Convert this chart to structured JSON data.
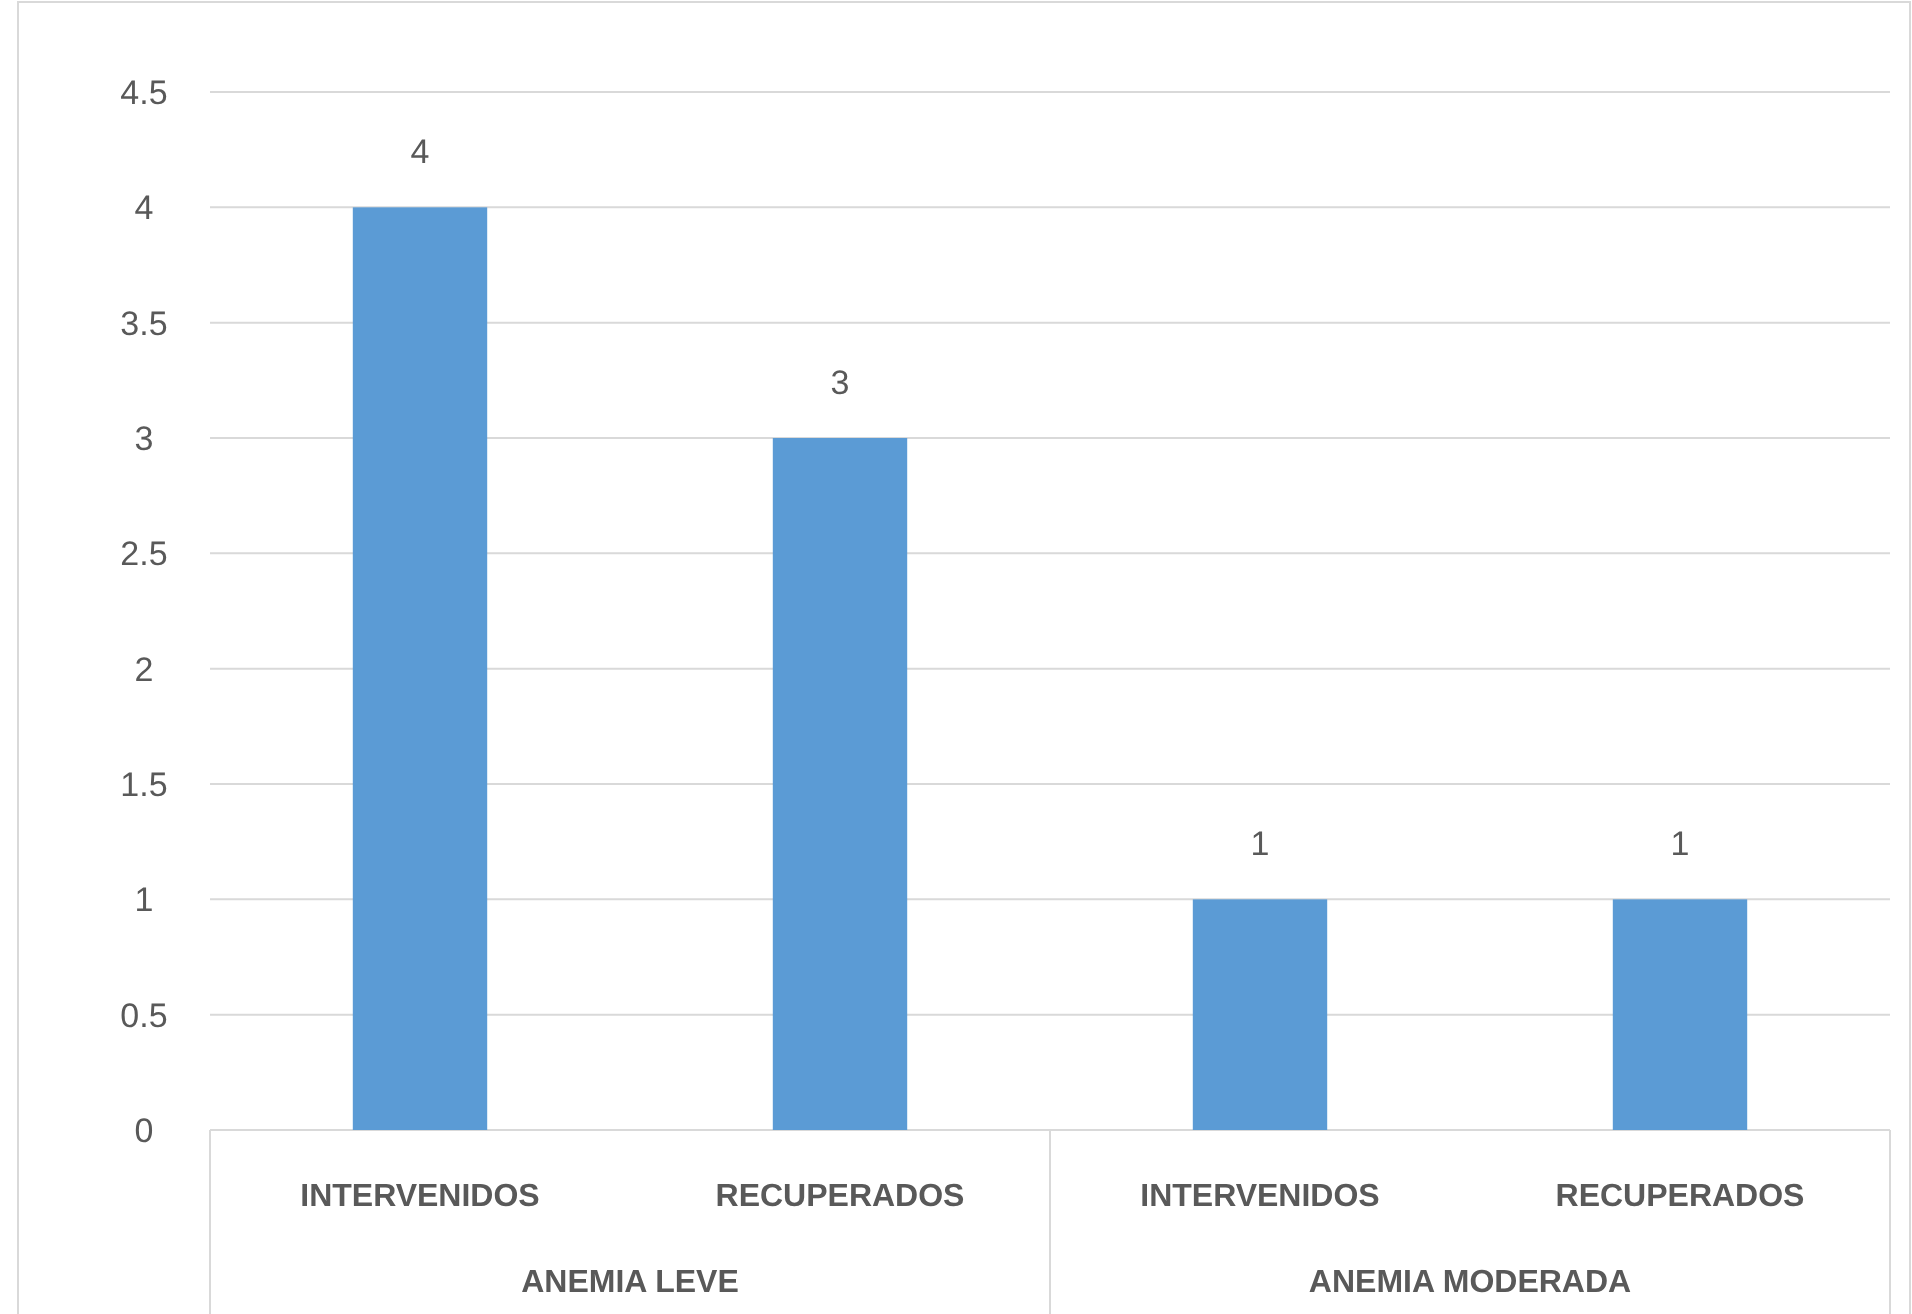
{
  "chart_data": {
    "type": "bar",
    "categories": [
      "INTERVENIDOS",
      "RECUPERADOS",
      "INTERVENIDOS",
      "RECUPERADOS"
    ],
    "values": [
      4,
      3,
      1,
      1
    ],
    "color": "#5b9bd5",
    "ylim": [
      0,
      4.5
    ],
    "yticks": [
      0,
      0.5,
      1,
      1.5,
      2,
      2.5,
      3,
      3.5,
      4,
      4.5
    ],
    "grid": "y",
    "data_labels": true,
    "annotations": [
      "ANEMIA LEVE",
      "ANEMIA MODERADA"
    ]
  }
}
